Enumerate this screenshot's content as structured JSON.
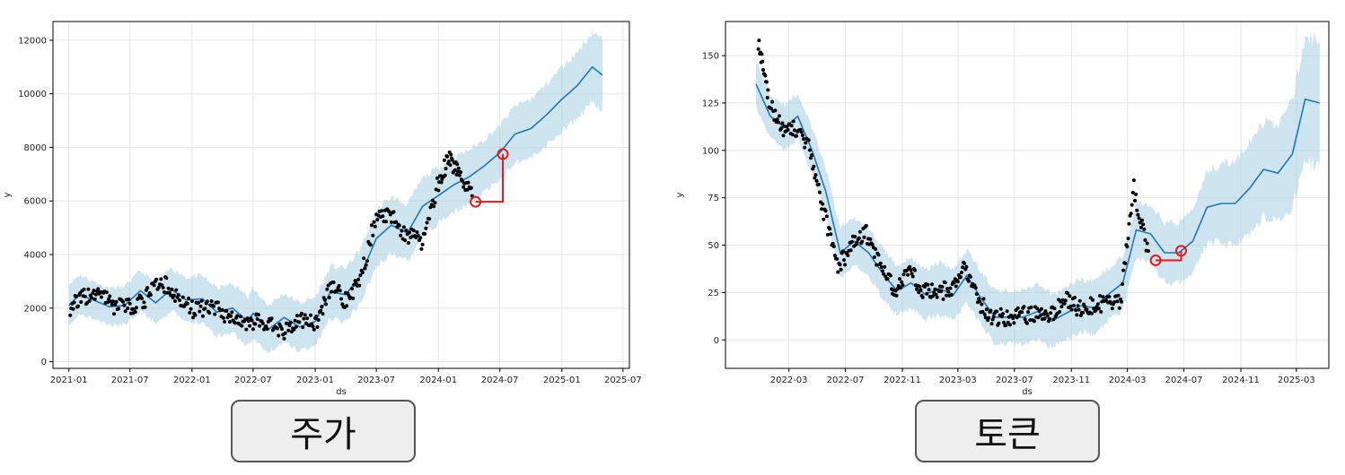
{
  "chart_data": [
    {
      "type": "line",
      "caption": "주가",
      "xlabel": "ds",
      "ylabel": "y",
      "x_ticks": [
        "2021-01",
        "2021-07",
        "2022-01",
        "2022-07",
        "2023-01",
        "2023-07",
        "2024-01",
        "2024-07",
        "2025-01",
        "2025-07"
      ],
      "y_ticks": [
        0,
        2000,
        4000,
        6000,
        8000,
        10000,
        12000
      ],
      "xlim": [
        "2020-11-15",
        "2025-07-20"
      ],
      "ylim": [
        -250,
        12700
      ],
      "grid": true,
      "colors": {
        "forecast": "#1f77b4",
        "band": "#a6cde2",
        "observed": "#000000",
        "annotation": "#e31a1c"
      },
      "forecast": {
        "x": [
          "2021-01-01",
          "2021-02-01",
          "2021-03-15",
          "2021-05-01",
          "2021-06-15",
          "2021-08-01",
          "2021-09-15",
          "2021-11-01",
          "2021-12-15",
          "2022-02-01",
          "2022-03-15",
          "2022-05-01",
          "2022-06-15",
          "2022-07-01",
          "2022-08-15",
          "2022-10-01",
          "2022-11-15",
          "2023-01-01",
          "2023-02-15",
          "2023-04-01",
          "2023-05-15",
          "2023-07-01",
          "2023-08-15",
          "2023-10-01",
          "2023-11-15",
          "2024-01-01",
          "2024-02-15",
          "2024-04-01",
          "2024-05-15",
          "2024-07-01",
          "2024-08-15",
          "2024-10-01",
          "2024-11-15",
          "2025-01-01",
          "2025-02-15",
          "2025-04-01",
          "2025-05-01"
        ],
        "y": [
          2100,
          2500,
          2300,
          2050,
          2100,
          2650,
          2200,
          2700,
          2300,
          2350,
          1850,
          2000,
          1500,
          1800,
          1200,
          1650,
          1300,
          1500,
          2600,
          2500,
          3200,
          4600,
          5100,
          4800,
          5800,
          6200,
          6600,
          6900,
          7300,
          7800,
          8500,
          8700,
          9200,
          9800,
          10300,
          11000,
          10700
        ],
        "band_width": [
          800,
          750,
          700,
          700,
          700,
          750,
          750,
          800,
          850,
          850,
          900,
          900,
          950,
          950,
          900,
          900,
          900,
          900,
          950,
          1000,
          1000,
          1050,
          1050,
          1050,
          1050,
          1050,
          1050,
          1000,
          1000,
          1000,
          1050,
          1100,
          1150,
          1200,
          1250,
          1300,
          1300
        ]
      },
      "observed": {
        "x": [
          "2021-01-05",
          "2021-02-15",
          "2021-04-01",
          "2021-05-15",
          "2021-07-01",
          "2021-08-15",
          "2021-10-01",
          "2021-11-15",
          "2022-01-01",
          "2022-02-15",
          "2022-04-01",
          "2022-05-15",
          "2022-07-01",
          "2022-08-15",
          "2022-10-01",
          "2022-11-15",
          "2023-01-01",
          "2023-02-15",
          "2023-04-01",
          "2023-05-15",
          "2023-07-01",
          "2023-08-15",
          "2023-10-01",
          "2023-11-15",
          "2024-01-01",
          "2024-02-01",
          "2024-03-01",
          "2024-04-10"
        ],
        "y": [
          2050,
          2400,
          2550,
          2100,
          2000,
          2350,
          3000,
          2450,
          1950,
          2000,
          1850,
          1550,
          1500,
          1450,
          1100,
          1550,
          1400,
          2800,
          2300,
          3000,
          5500,
          5400,
          4700,
          4500,
          6700,
          7600,
          7000,
          6200
        ]
      },
      "annotation": {
        "from": {
          "x": "2024-04-20",
          "y": 5970
        },
        "to": {
          "x": "2024-07-10",
          "y": 7750
        }
      }
    },
    {
      "type": "line",
      "caption": "토큰",
      "xlabel": "ds",
      "ylabel": "y",
      "x_ticks": [
        "2022-03",
        "2022-07",
        "2022-11",
        "2023-03",
        "2023-07",
        "2023-11",
        "2024-03",
        "2024-07",
        "2024-11",
        "2025-03"
      ],
      "y_ticks": [
        0,
        25,
        50,
        75,
        100,
        125,
        150
      ],
      "xlim": [
        "2021-10-15",
        "2025-05-10"
      ],
      "ylim": [
        -15,
        168
      ],
      "grid": true,
      "colors": {
        "forecast": "#1f77b4",
        "band": "#a6cde2",
        "observed": "#000000",
        "annotation": "#e31a1c"
      },
      "forecast": {
        "x": [
          "2021-12-20",
          "2022-01-20",
          "2022-02-20",
          "2022-03-20",
          "2022-04-20",
          "2022-05-20",
          "2022-06-20",
          "2022-07-20",
          "2022-08-20",
          "2022-09-20",
          "2022-10-20",
          "2022-11-20",
          "2022-12-20",
          "2023-01-20",
          "2023-02-20",
          "2023-03-20",
          "2023-04-20",
          "2023-05-20",
          "2023-06-20",
          "2023-07-20",
          "2023-08-20",
          "2023-09-20",
          "2023-10-20",
          "2023-11-20",
          "2023-12-20",
          "2024-01-20",
          "2024-02-20",
          "2024-03-20",
          "2024-04-20",
          "2024-05-20",
          "2024-06-20",
          "2024-07-20",
          "2024-08-20",
          "2024-09-20",
          "2024-10-20",
          "2024-11-20",
          "2024-12-20",
          "2025-01-20",
          "2025-02-20",
          "2025-03-20",
          "2025-04-20"
        ],
        "y": [
          135,
          118,
          112,
          118,
          100,
          78,
          46,
          52,
          46,
          35,
          26,
          30,
          24,
          27,
          24,
          34,
          22,
          12,
          12,
          12,
          15,
          10,
          14,
          18,
          17,
          24,
          30,
          58,
          56,
          46,
          46,
          52,
          70,
          72,
          72,
          80,
          90,
          88,
          98,
          127,
          125
        ],
        "band_width": [
          12,
          12,
          12,
          12,
          12,
          12,
          13,
          13,
          13,
          13,
          13,
          13,
          13,
          14,
          14,
          14,
          14,
          14,
          14,
          14,
          14,
          14,
          14,
          14,
          14,
          14,
          14,
          15,
          15,
          16,
          16,
          18,
          19,
          21,
          22,
          24,
          25,
          26,
          28,
          32,
          33
        ]
      },
      "observed": {
        "x": [
          "2021-12-25",
          "2022-01-15",
          "2022-02-15",
          "2022-03-15",
          "2022-04-15",
          "2022-05-15",
          "2022-06-15",
          "2022-07-15",
          "2022-08-15",
          "2022-09-15",
          "2022-10-15",
          "2022-11-15",
          "2022-12-15",
          "2023-01-15",
          "2023-02-15",
          "2023-03-15",
          "2023-04-15",
          "2023-05-15",
          "2023-06-15",
          "2023-07-15",
          "2023-08-15",
          "2023-09-15",
          "2023-10-15",
          "2023-11-15",
          "2023-12-15",
          "2024-01-15",
          "2024-02-15",
          "2024-03-15",
          "2024-04-15"
        ],
        "y": [
          158,
          128,
          110,
          112,
          100,
          68,
          38,
          50,
          56,
          38,
          26,
          38,
          26,
          26,
          26,
          38,
          20,
          12,
          12,
          13,
          13,
          12,
          22,
          17,
          18,
          20,
          20,
          80,
          45
        ]
      },
      "annotation": {
        "from": {
          "x": "2024-05-01",
          "y": 42
        },
        "to": {
          "x": "2024-06-25",
          "y": 47
        }
      }
    }
  ]
}
